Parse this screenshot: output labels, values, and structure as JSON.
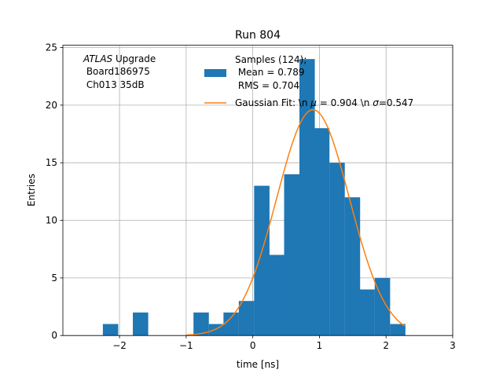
{
  "chart_data": {
    "type": "bar",
    "title": "Run 804",
    "xlabel": "time [ns]",
    "ylabel": "Entries",
    "xlim": [
      -2.85,
      3.0
    ],
    "ylim": [
      0,
      25.2
    ],
    "grid": true,
    "x_ticks": [
      -2,
      -1,
      0,
      1,
      2,
      3
    ],
    "x_tick_labels": [
      "−2",
      "−1",
      "0",
      "1",
      "2",
      "3"
    ],
    "y_ticks": [
      0,
      5,
      10,
      15,
      20,
      25
    ],
    "y_tick_labels": [
      "0",
      "5",
      "10",
      "15",
      "20",
      "25"
    ],
    "bin_width": 0.226,
    "bins": [
      {
        "x0": -2.25,
        "count": 1
      },
      {
        "x0": -1.8,
        "count": 2
      },
      {
        "x0": -0.89,
        "count": 2
      },
      {
        "x0": -0.66,
        "count": 1
      },
      {
        "x0": -0.44,
        "count": 2
      },
      {
        "x0": -0.21,
        "count": 3
      },
      {
        "x0": 0.02,
        "count": 13
      },
      {
        "x0": 0.24,
        "count": 7
      },
      {
        "x0": 0.47,
        "count": 14
      },
      {
        "x0": 0.7,
        "count": 24
      },
      {
        "x0": 0.92,
        "count": 18
      },
      {
        "x0": 1.15,
        "count": 15
      },
      {
        "x0": 1.38,
        "count": 12
      },
      {
        "x0": 1.6,
        "count": 4
      },
      {
        "x0": 1.83,
        "count": 5
      },
      {
        "x0": 2.06,
        "count": 1
      }
    ],
    "fit": {
      "mu": 0.904,
      "sigma": 0.547,
      "amplitude": 19.6,
      "x_range": [
        -1.0,
        2.28
      ]
    },
    "series": [
      {
        "name": "Samples (124);",
        "color": "#1f77b4"
      },
      {
        "name": "Gaussian Fit: \\n $\\mu$ = 0.904 \\n $\\sigma$=0.547",
        "color": "#ff7f0e"
      }
    ],
    "legend_position": "top-center",
    "legend_lines": {
      "samples": [
        "Samples (124);",
        " Mean = 0.789",
        " RMS = 0.704"
      ],
      "fit_prefix": "Gaussian Fit: \\n ",
      "fit_mu_symbol": "μ",
      "fit_middle": " = 0.904 \\n ",
      "fit_sigma_symbol": "σ",
      "fit_suffix": "=0.547"
    },
    "annotation": {
      "italic": "ATLAS",
      "rest": " Upgrade",
      "line2": " Board186975",
      "line3": " Ch013 35dB"
    }
  }
}
